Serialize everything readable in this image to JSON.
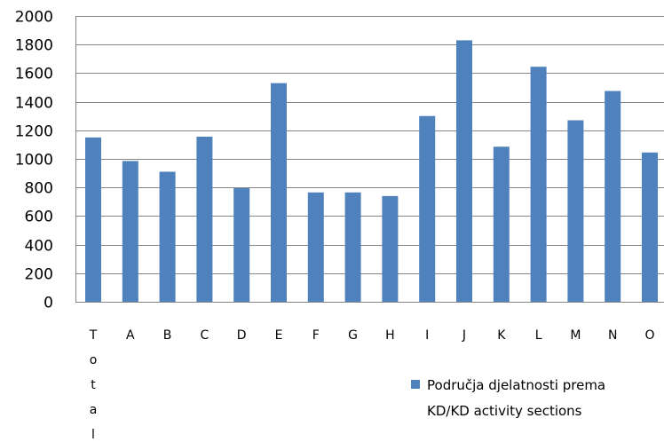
{
  "chart_data": {
    "type": "bar",
    "categories": [
      "Total",
      "A",
      "B",
      "C",
      "D",
      "E",
      "F",
      "G",
      "H",
      "I",
      "J",
      "K",
      "L",
      "M",
      "N",
      "O"
    ],
    "series": [
      {
        "name": "Područja djelatnosti prema KD/KD activity sections",
        "values": [
          1150,
          985,
          910,
          1155,
          795,
          1530,
          765,
          765,
          740,
          1300,
          1830,
          1085,
          1645,
          1270,
          1475,
          1045
        ],
        "color": "#4f81bd"
      }
    ],
    "legend": {
      "lines": [
        "Područja djelatnosti prema",
        "KD/KD activity sections"
      ],
      "position": "bottom-right"
    },
    "ylim": [
      0,
      2000
    ],
    "yticks": [
      0,
      200,
      400,
      600,
      800,
      1000,
      1200,
      1400,
      1600,
      1800,
      2000
    ],
    "grid": true,
    "gridColor": "#868686"
  }
}
